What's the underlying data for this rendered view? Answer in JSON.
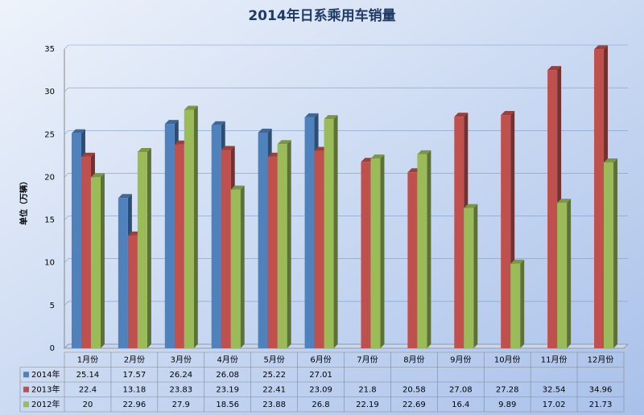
{
  "chart_data": {
    "type": "bar",
    "title": "2014年日系乘用车销量",
    "y_label": "单位（万辆）",
    "categories": [
      "1月份",
      "2月份",
      "3月份",
      "4月份",
      "5月份",
      "6月份",
      "7月份",
      "8月份",
      "9月份",
      "10月份",
      "11月份",
      "12月份"
    ],
    "series": [
      {
        "name": "2014年",
        "color": "#4f81bd",
        "values": [
          25.14,
          17.57,
          26.24,
          26.08,
          25.22,
          27.01,
          null,
          null,
          null,
          null,
          null,
          null
        ]
      },
      {
        "name": "2013年",
        "color": "#c0504d",
        "values": [
          22.4,
          13.18,
          23.83,
          23.19,
          22.41,
          23.09,
          21.8,
          20.58,
          27.08,
          27.28,
          32.54,
          34.96
        ]
      },
      {
        "name": "2012年",
        "color": "#9bbb59",
        "values": [
          20,
          22.96,
          27.9,
          18.56,
          23.88,
          26.8,
          22.19,
          22.69,
          16.4,
          9.89,
          17.02,
          21.73
        ]
      }
    ],
    "ylim": [
      0,
      35
    ],
    "yticks": [
      0,
      5,
      10,
      15,
      20,
      25,
      30,
      35
    ],
    "grid": true
  }
}
